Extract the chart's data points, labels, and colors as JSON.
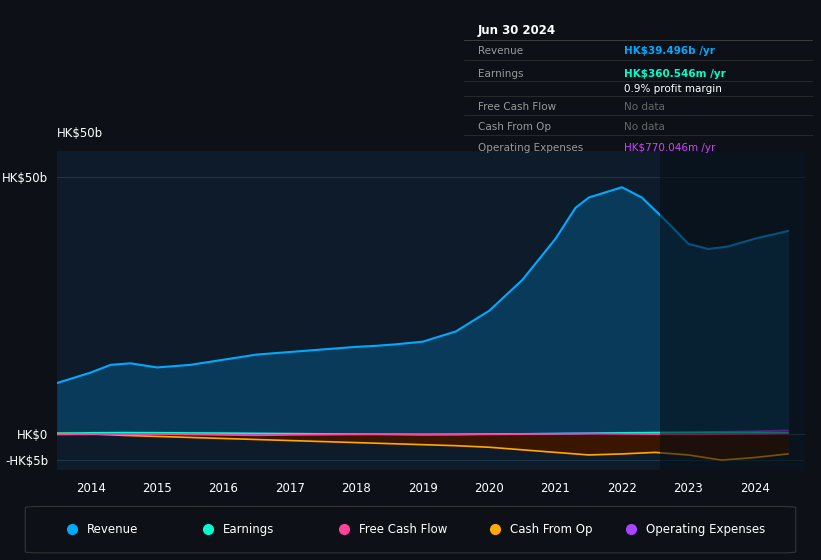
{
  "bg_color": "#0d1117",
  "plot_bg_color": "#0d1b2a",
  "title_box": {
    "date": "Jun 30 2024",
    "rows": [
      {
        "label": "Revenue",
        "value": "HK$39.496b /yr",
        "value_color": "#00aaff"
      },
      {
        "label": "Earnings",
        "value": "HK$360.546m /yr",
        "value_color": "#00ffcc"
      },
      {
        "label": "",
        "value": "0.9% profit margin",
        "value_color": "#ffffff"
      },
      {
        "label": "Free Cash Flow",
        "value": "No data",
        "value_color": "#666666"
      },
      {
        "label": "Cash From Op",
        "value": "No data",
        "value_color": "#666666"
      },
      {
        "label": "Operating Expenses",
        "value": "HK$770.046m /yr",
        "value_color": "#cc44ff"
      }
    ]
  },
  "ytick_labels": [
    "HK$50b",
    "HK$0",
    "-HK$5b"
  ],
  "ytick_values": [
    50000000000,
    0,
    -5000000000
  ],
  "xtick_labels": [
    "2014",
    "2015",
    "2016",
    "2017",
    "2018",
    "2019",
    "2020",
    "2021",
    "2022",
    "2023",
    "2024"
  ],
  "xtick_positions": [
    2014,
    2015,
    2016,
    2017,
    2018,
    2019,
    2020,
    2021,
    2022,
    2023,
    2024
  ],
  "ylim": [
    -7000000000,
    55000000000
  ],
  "xlim": [
    2013.5,
    2024.75
  ],
  "revenue": {
    "x": [
      2013.5,
      2014.0,
      2014.3,
      2014.6,
      2015.0,
      2015.5,
      2016.0,
      2016.5,
      2017.0,
      2017.5,
      2018.0,
      2018.3,
      2018.6,
      2019.0,
      2019.5,
      2020.0,
      2020.5,
      2021.0,
      2021.3,
      2021.5,
      2022.0,
      2022.3,
      2022.7,
      2023.0,
      2023.3,
      2023.6,
      2024.0,
      2024.5
    ],
    "y": [
      10000000000,
      12000000000,
      13500000000,
      13800000000,
      13000000000,
      13500000000,
      14500000000,
      15500000000,
      16000000000,
      16500000000,
      17000000000,
      17200000000,
      17500000000,
      18000000000,
      20000000000,
      24000000000,
      30000000000,
      38000000000,
      44000000000,
      46000000000,
      48000000000,
      46000000000,
      41000000000,
      37000000000,
      36000000000,
      36500000000,
      38000000000,
      39496000000
    ],
    "color": "#00aaff",
    "fill_color": "#0a3a5a"
  },
  "earnings": {
    "x": [
      2013.5,
      2014.0,
      2014.5,
      2015.0,
      2015.5,
      2016.0,
      2016.5,
      2017.0,
      2017.5,
      2018.0,
      2018.5,
      2019.0,
      2019.5,
      2020.0,
      2020.5,
      2021.0,
      2021.5,
      2022.0,
      2022.5,
      2023.0,
      2023.5,
      2024.0,
      2024.5
    ],
    "y": [
      200000000,
      300000000,
      350000000,
      320000000,
      280000000,
      250000000,
      200000000,
      150000000,
      100000000,
      50000000,
      0,
      -50000000,
      10000000,
      50000000,
      100000000,
      150000000,
      200000000,
      280000000,
      300000000,
      320000000,
      350000000,
      360000000,
      360546000
    ],
    "color": "#00ffcc"
  },
  "free_cash_flow": {
    "x": [
      2013.5,
      2014.0,
      2014.5,
      2015.0,
      2015.5,
      2016.0,
      2016.5,
      2017.0,
      2017.5,
      2018.0,
      2018.5,
      2019.0,
      2019.5,
      2020.0,
      2020.5,
      2021.0,
      2021.5,
      2022.0,
      2022.5,
      2023.0,
      2023.5,
      2024.0,
      2024.5
    ],
    "y": [
      0,
      50000000,
      100000000,
      50000000,
      0,
      -100000000,
      -200000000,
      -100000000,
      -50000000,
      0,
      50000000,
      0,
      -50000000,
      0,
      50000000,
      100000000,
      150000000,
      100000000,
      50000000,
      0,
      50000000,
      100000000,
      150000000
    ],
    "color": "#ff4499"
  },
  "cash_from_op": {
    "x": [
      2013.5,
      2014.0,
      2014.5,
      2015.0,
      2015.5,
      2016.0,
      2016.5,
      2017.0,
      2017.5,
      2018.0,
      2018.5,
      2019.0,
      2019.5,
      2020.0,
      2020.5,
      2021.0,
      2021.5,
      2022.0,
      2022.5,
      2023.0,
      2023.5,
      2024.0,
      2024.5
    ],
    "y": [
      200000000,
      100000000,
      -200000000,
      -400000000,
      -600000000,
      -800000000,
      -1000000000,
      -1200000000,
      -1400000000,
      -1600000000,
      -1800000000,
      -2000000000,
      -2200000000,
      -2500000000,
      -3000000000,
      -3500000000,
      -4000000000,
      -3800000000,
      -3500000000,
      -4000000000,
      -5000000000,
      -4500000000,
      -3800000000
    ],
    "color": "#ffaa00",
    "fill_color": "#3a1500"
  },
  "op_expenses": {
    "x": [
      2013.5,
      2014.0,
      2014.5,
      2015.0,
      2015.5,
      2016.0,
      2016.5,
      2017.0,
      2017.5,
      2018.0,
      2018.5,
      2019.0,
      2019.5,
      2020.0,
      2020.5,
      2021.0,
      2021.5,
      2022.0,
      2022.5,
      2023.0,
      2023.5,
      2024.0,
      2024.5
    ],
    "y": [
      0,
      0,
      0,
      0,
      0,
      0,
      0,
      0,
      0,
      0,
      0,
      0,
      0,
      50000000,
      100000000,
      150000000,
      200000000,
      300000000,
      400000000,
      450000000,
      500000000,
      600000000,
      770046000
    ],
    "color": "#aa44ff",
    "fill_color": "#3a0a5a"
  },
  "legend": [
    {
      "label": "Revenue",
      "color": "#00aaff"
    },
    {
      "label": "Earnings",
      "color": "#00ffcc"
    },
    {
      "label": "Free Cash Flow",
      "color": "#ff4499"
    },
    {
      "label": "Cash From Op",
      "color": "#ffaa00"
    },
    {
      "label": "Operating Expenses",
      "color": "#aa44ff"
    }
  ]
}
